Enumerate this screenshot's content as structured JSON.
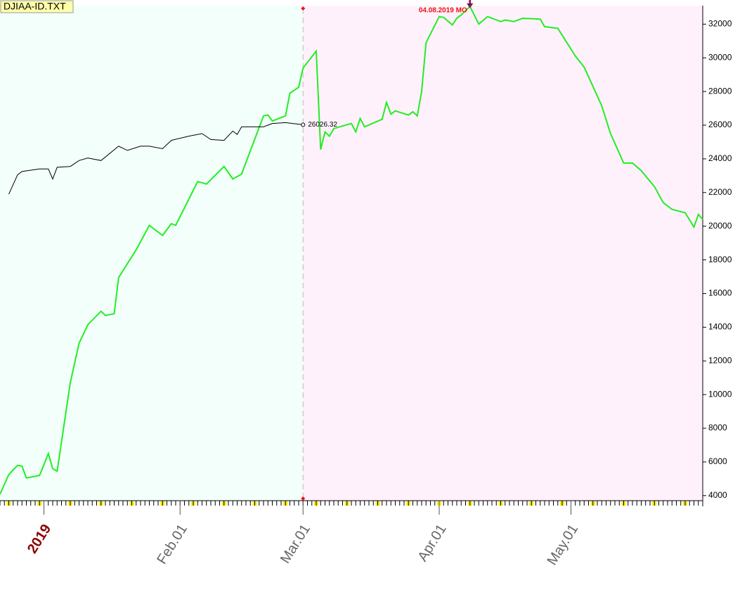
{
  "chart_data": {
    "type": "line",
    "title": "DJIAA-ID.TXT",
    "annotation": "04.08.2019 MO",
    "annotation_x": "2019-04-08",
    "xlim": [
      "2018-12-22",
      "2019-05-31"
    ],
    "xticks": [
      {
        "value": "2019-01-01",
        "label": "2019"
      },
      {
        "value": "2019-02-01",
        "label": "Feb.01"
      },
      {
        "value": "2019-03-01",
        "label": "Mar.01"
      },
      {
        "value": "2019-04-01",
        "label": "Apr.01"
      },
      {
        "value": "2019-05-01",
        "label": "May.01"
      }
    ],
    "ylim": [
      3700,
      33100
    ],
    "yticks": [
      4000,
      6000,
      8000,
      10000,
      12000,
      14000,
      16000,
      18000,
      20000,
      22000,
      24000,
      26000,
      28000,
      30000,
      32000
    ],
    "regions": [
      {
        "from": "2018-12-22",
        "to": "2019-03-01",
        "color": "#f3fffb"
      },
      {
        "from": "2019-03-01",
        "to": "2019-05-31",
        "color": "#fff1fb"
      }
    ],
    "series": [
      {
        "color": "#22ee22",
        "x": [
          "2018-12-22",
          "2018-12-24",
          "2018-12-26",
          "2018-12-27",
          "2018-12-28",
          "2018-12-31",
          "2019-01-02",
          "2019-01-03",
          "2019-01-04",
          "2019-01-07",
          "2019-01-09",
          "2019-01-11",
          "2019-01-14",
          "2019-01-15",
          "2019-01-17",
          "2019-01-18",
          "2019-01-22",
          "2019-01-25",
          "2019-01-28",
          "2019-01-30",
          "2019-01-31",
          "2019-02-05",
          "2019-02-07",
          "2019-02-11",
          "2019-02-13",
          "2019-02-15",
          "2019-02-20",
          "2019-02-21",
          "2019-02-22",
          "2019-02-25",
          "2019-02-26",
          "2019-02-28",
          "2019-03-01",
          "2019-03-04",
          "2019-03-05",
          "2019-03-06",
          "2019-03-07",
          "2019-03-08",
          "2019-03-12",
          "2019-03-13",
          "2019-03-14",
          "2019-03-15",
          "2019-03-19",
          "2019-03-20",
          "2019-03-21",
          "2019-03-22",
          "2019-03-25",
          "2019-03-26",
          "2019-03-27",
          "2019-03-28",
          "2019-03-29",
          "2019-04-01",
          "2019-04-02",
          "2019-04-04",
          "2019-04-05",
          "2019-04-06",
          "2019-04-08",
          "2019-04-10",
          "2019-04-12",
          "2019-04-15",
          "2019-04-16",
          "2019-04-18",
          "2019-04-20",
          "2019-04-24",
          "2019-04-25",
          "2019-04-28",
          "2019-05-02",
          "2019-05-04",
          "2019-05-08",
          "2019-05-10",
          "2019-05-13",
          "2019-05-15",
          "2019-05-17",
          "2019-05-20",
          "2019-05-22",
          "2019-05-24",
          "2019-05-27",
          "2019-05-29",
          "2019-05-30",
          "2019-05-31"
        ],
        "values": [
          4080,
          5250,
          5800,
          5750,
          5050,
          5200,
          6500,
          5600,
          5450,
          10700,
          13050,
          14150,
          14950,
          14700,
          14800,
          16950,
          18600,
          20050,
          19450,
          20150,
          20050,
          22650,
          22500,
          23550,
          22800,
          23100,
          26550,
          26600,
          26250,
          26550,
          27900,
          28250,
          29400,
          30400,
          24550,
          25600,
          25350,
          25800,
          26100,
          25600,
          26400,
          25900,
          26350,
          27350,
          26650,
          26850,
          26600,
          26800,
          26550,
          28000,
          30900,
          32450,
          32400,
          31950,
          32350,
          32550,
          33050,
          32000,
          32450,
          32150,
          32250,
          32150,
          32350,
          32300,
          31850,
          31750,
          30100,
          29450,
          27150,
          25500,
          23750,
          23750,
          23300,
          22350,
          21400,
          21000,
          20800,
          19950,
          20700,
          20400
        ]
      },
      {
        "color": "#000000",
        "x": [
          "2018-12-24",
          "2018-12-26",
          "2018-12-27",
          "2018-12-31",
          "2019-01-02",
          "2019-01-03",
          "2019-01-04",
          "2019-01-07",
          "2019-01-09",
          "2019-01-11",
          "2019-01-14",
          "2019-01-18",
          "2019-01-20",
          "2019-01-23",
          "2019-01-25",
          "2019-01-28",
          "2019-01-30",
          "2019-02-03",
          "2019-02-06",
          "2019-02-08",
          "2019-02-11",
          "2019-02-13",
          "2019-02-14",
          "2019-02-15",
          "2019-02-20",
          "2019-02-22",
          "2019-02-25",
          "2019-03-01"
        ],
        "values": [
          21900,
          23050,
          23250,
          23400,
          23400,
          22800,
          23500,
          23550,
          23900,
          24050,
          23900,
          24750,
          24500,
          24750,
          24750,
          24600,
          25100,
          25350,
          25500,
          25150,
          25100,
          25650,
          25450,
          25900,
          25900,
          26100,
          26150,
          26026.32
        ]
      }
    ]
  }
}
